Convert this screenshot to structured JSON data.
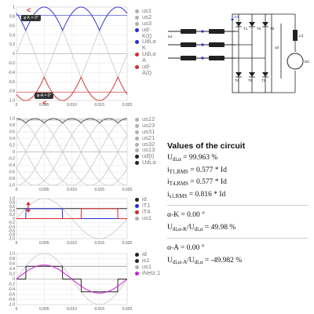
{
  "plots": [
    {
      "id": "voltage",
      "ylim": [
        -1,
        1
      ],
      "yticks": [
        "1",
        "0.8",
        "0.6",
        "0.4",
        "0.2",
        "0",
        "-0.2",
        "-0.4",
        "-0.6",
        "-0.8",
        "-1.0"
      ],
      "xticks": [
        "0",
        "0.005",
        "0.010",
        "0.015",
        "0.020"
      ],
      "legend": [
        {
          "label": "us1",
          "color": "#b0b0b0"
        },
        {
          "label": "us2",
          "color": "#b0b0b0"
        },
        {
          "label": "us3",
          "color": "#b0b0b0"
        },
        {
          "label": "ud-\nK(t)",
          "color": "#2a2ad8"
        },
        {
          "label": "Udi,α\nK",
          "color": "#2a2ad8"
        },
        {
          "label": "Udi,α\nA",
          "color": "#d82a2a"
        },
        {
          "label": "ud-\nA(t)",
          "color": "#d82a2a"
        }
      ],
      "markers": {
        "k_label": "φ-K = 0°",
        "a_label": "φ-A = 0°"
      }
    },
    {
      "id": "line-voltage",
      "ylim": [
        -1,
        1
      ],
      "yticks": [
        "1.0",
        "0.8",
        "0.6",
        "0.4",
        "0.2",
        "0",
        "-0.2",
        "-0.4",
        "-0.6",
        "-0.8",
        "-1.0"
      ],
      "xticks": [
        "0",
        "0.005",
        "0.010",
        "0.015",
        "0.020"
      ],
      "legend": [
        {
          "label": "us12",
          "color": "#b0b0b0"
        },
        {
          "label": "us23",
          "color": "#b0b0b0"
        },
        {
          "label": "us31",
          "color": "#b0b0b0"
        },
        {
          "label": "us21",
          "color": "#b0b0b0"
        },
        {
          "label": "us32",
          "color": "#b0b0b0"
        },
        {
          "label": "us13",
          "color": "#b0b0b0"
        },
        {
          "label": "ud(t)",
          "color": "#222222"
        },
        {
          "label": "Udi,α",
          "color": "#222222"
        }
      ]
    },
    {
      "id": "current",
      "ylim": [
        -1,
        1
      ],
      "yticks": [
        "1.0",
        "0.8",
        "0.6",
        "0.4",
        "0.2",
        "0",
        "-0.2",
        "-0.4",
        "-0.6",
        "-0.8",
        "-1.0"
      ],
      "xticks": [
        "0",
        "0.005",
        "0.010",
        "0.015",
        "0.020"
      ],
      "legend": [
        {
          "label": "id",
          "color": "#222222"
        },
        {
          "label": "iT1",
          "color": "#2a2ad8"
        },
        {
          "label": "iT4",
          "color": "#d82a2a"
        },
        {
          "label": "us1",
          "color": "#b0b0b0"
        }
      ]
    },
    {
      "id": "network",
      "ylim": [
        -1,
        1
      ],
      "yticks": [
        "1.0",
        "0.8",
        "0.6",
        "0.4",
        "0.2",
        "0",
        "-0.2",
        "-0.4",
        "-0.6",
        "-0.8",
        "-1.0"
      ],
      "xticks": [
        "0",
        "0.005",
        "0.010",
        "0.015",
        "0.020"
      ],
      "legend": [
        {
          "label": "id",
          "color": "#222222"
        },
        {
          "label": "is1",
          "color": "#222222"
        },
        {
          "label": "us1",
          "color": "#b0b0b0"
        },
        {
          "label": "iNetz,1",
          "color": "#d020d0"
        }
      ]
    }
  ],
  "values": {
    "title": "Values of the circuit",
    "udi_prefix": "U",
    "udi_sub": "di,α",
    "udi_value": " = 99.963 %",
    "it1_prefix": "i",
    "it1_sub": "T1,RMS",
    "it1_value": " = 0.577 * Id",
    "it4_prefix": "i",
    "it4_sub": "T4,RMS",
    "it4_value": " = 0.577 * Id",
    "is1_prefix": "i",
    "is1_sub": "s1,RMS",
    "is1_value": " = 0.816 * Id",
    "alpha_k": "α-K = 0.00 °",
    "ratio_k_prefix": "U",
    "ratio_k_sub": "di,α-K",
    "ratio_k_mid": "/U",
    "ratio_k_sub2": "di,α",
    "ratio_k_value": " = 49.98 %",
    "alpha_a": "α-A = 0.00 °",
    "ratio_a_prefix": "U",
    "ratio_a_sub": "di,α-A",
    "ratio_a_mid": "/U",
    "ratio_a_sub2": "di,α",
    "ratio_a_value": " = -49.982 %"
  },
  "circuit": {
    "labels": {
      "t1": "T1",
      "t3": "T3",
      "t5": "T5",
      "t4": "T4",
      "t6": "T6",
      "t2": "T2",
      "is1": "is1",
      "it1": "iT1",
      "ud": "ud",
      "ld": "Ld",
      "dc": "DC",
      "ia": "id"
    }
  }
}
